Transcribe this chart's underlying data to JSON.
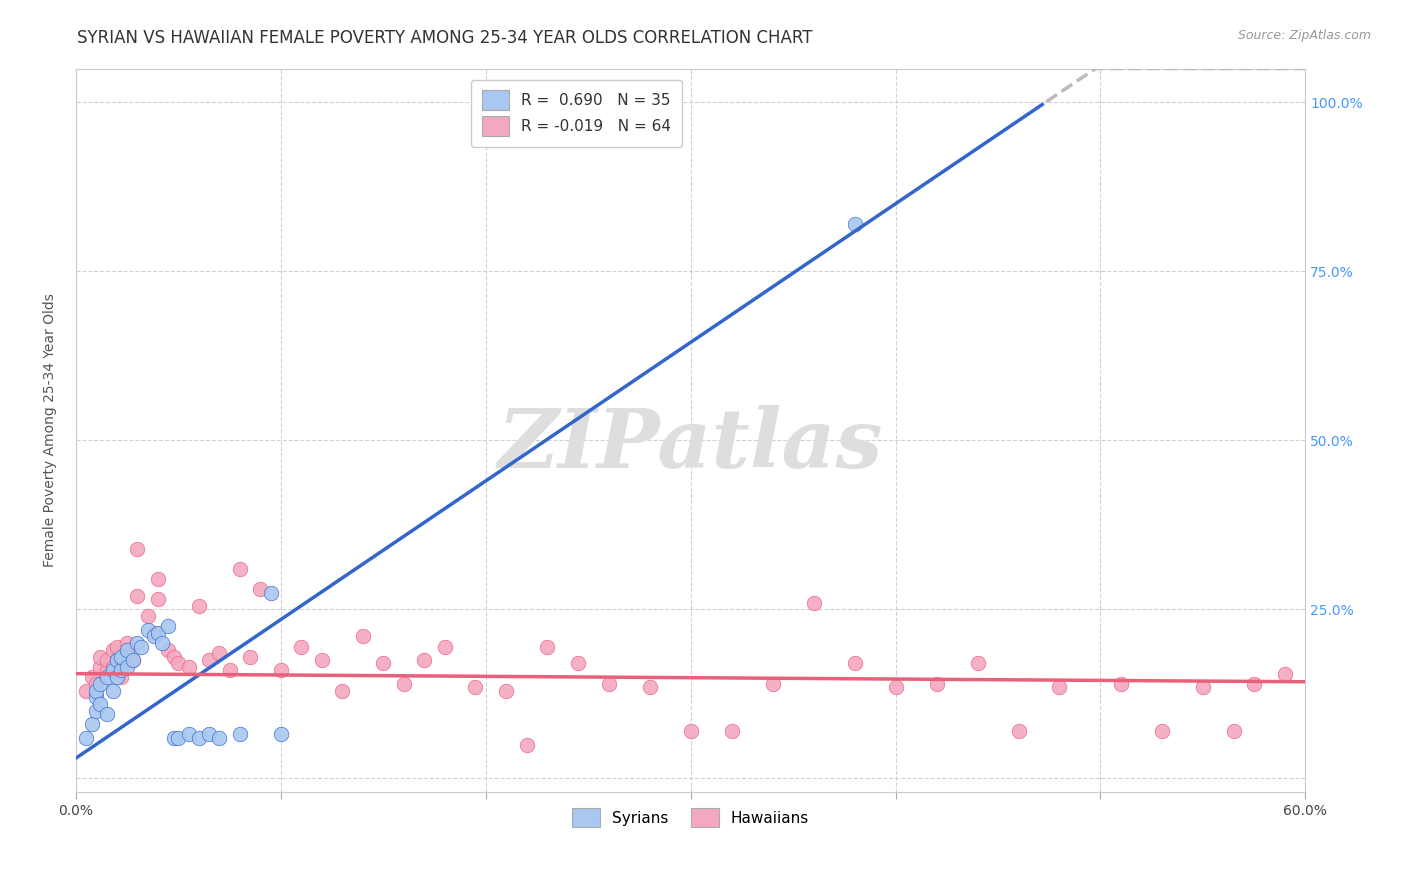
{
  "title": "SYRIAN VS HAWAIIAN FEMALE POVERTY AMONG 25-34 YEAR OLDS CORRELATION CHART",
  "source": "Source: ZipAtlas.com",
  "ylabel": "Female Poverty Among 25-34 Year Olds",
  "xlim": [
    0.0,
    0.6
  ],
  "ylim": [
    -0.02,
    1.05
  ],
  "xticks": [
    0.0,
    0.1,
    0.2,
    0.3,
    0.4,
    0.5,
    0.6
  ],
  "xticklabels": [
    "0.0%",
    "",
    "",
    "",
    "",
    "",
    "60.0%"
  ],
  "ytick_positions": [
    0.0,
    0.25,
    0.5,
    0.75,
    1.0
  ],
  "yticklabels": [
    "",
    "25.0%",
    "50.0%",
    "75.0%",
    "100.0%"
  ],
  "R_syrian": 0.69,
  "N_syrian": 35,
  "R_hawaiian": -0.019,
  "N_hawaiian": 64,
  "syrian_color": "#A8C8F0",
  "hawaiian_color": "#F4A8C0",
  "syrian_line_color": "#3366CC",
  "hawaiian_line_color": "#E8607A",
  "trend_line_extend_color": "#BBBBBB",
  "background_color": "#FFFFFF",
  "grid_color": "#CCCCCC",
  "watermark_color": "#DEDEDE",
  "watermark_text": "ZIPatlas",
  "title_fontsize": 12,
  "axis_label_fontsize": 10,
  "tick_fontsize": 10,
  "right_tick_color": "#4499FF",
  "syrian_line_slope": 2.05,
  "syrian_line_intercept": 0.03,
  "hawaiian_line_slope": -0.02,
  "hawaiian_line_intercept": 0.155,
  "syrian_scatter_x": [
    0.005,
    0.008,
    0.01,
    0.01,
    0.01,
    0.012,
    0.012,
    0.015,
    0.015,
    0.018,
    0.018,
    0.02,
    0.02,
    0.022,
    0.022,
    0.025,
    0.025,
    0.028,
    0.03,
    0.032,
    0.035,
    0.038,
    0.04,
    0.042,
    0.045,
    0.048,
    0.05,
    0.055,
    0.06,
    0.065,
    0.07,
    0.08,
    0.095,
    0.1,
    0.38
  ],
  "syrian_scatter_y": [
    0.06,
    0.08,
    0.1,
    0.12,
    0.13,
    0.11,
    0.14,
    0.095,
    0.15,
    0.13,
    0.16,
    0.15,
    0.175,
    0.16,
    0.18,
    0.165,
    0.19,
    0.175,
    0.2,
    0.195,
    0.22,
    0.21,
    0.215,
    0.2,
    0.225,
    0.06,
    0.06,
    0.065,
    0.06,
    0.065,
    0.06,
    0.065,
    0.275,
    0.065,
    0.82
  ],
  "hawaiian_scatter_x": [
    0.005,
    0.008,
    0.01,
    0.012,
    0.012,
    0.015,
    0.015,
    0.018,
    0.018,
    0.02,
    0.02,
    0.022,
    0.025,
    0.025,
    0.028,
    0.03,
    0.03,
    0.035,
    0.038,
    0.04,
    0.04,
    0.045,
    0.048,
    0.05,
    0.055,
    0.06,
    0.065,
    0.07,
    0.075,
    0.08,
    0.085,
    0.09,
    0.1,
    0.11,
    0.12,
    0.13,
    0.14,
    0.15,
    0.16,
    0.17,
    0.18,
    0.195,
    0.21,
    0.22,
    0.23,
    0.245,
    0.26,
    0.28,
    0.3,
    0.32,
    0.34,
    0.36,
    0.38,
    0.4,
    0.42,
    0.44,
    0.46,
    0.48,
    0.51,
    0.53,
    0.55,
    0.565,
    0.575,
    0.59
  ],
  "hawaiian_scatter_y": [
    0.13,
    0.15,
    0.14,
    0.165,
    0.18,
    0.16,
    0.175,
    0.19,
    0.165,
    0.175,
    0.195,
    0.15,
    0.185,
    0.2,
    0.175,
    0.34,
    0.27,
    0.24,
    0.215,
    0.295,
    0.265,
    0.19,
    0.18,
    0.17,
    0.165,
    0.255,
    0.175,
    0.185,
    0.16,
    0.31,
    0.18,
    0.28,
    0.16,
    0.195,
    0.175,
    0.13,
    0.21,
    0.17,
    0.14,
    0.175,
    0.195,
    0.135,
    0.13,
    0.05,
    0.195,
    0.17,
    0.14,
    0.135,
    0.07,
    0.07,
    0.14,
    0.26,
    0.17,
    0.135,
    0.14,
    0.17,
    0.07,
    0.135,
    0.14,
    0.07,
    0.135,
    0.07,
    0.14,
    0.155
  ]
}
